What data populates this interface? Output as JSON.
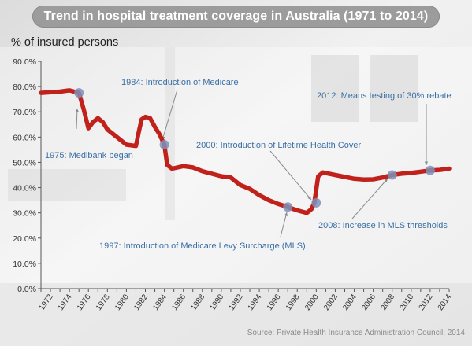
{
  "title": "Trend in hospital treatment coverage in Australia (1971 to 2014)",
  "source": "Source: Private Health Insurance Administration Council, 2014",
  "colors": {
    "line": "#c0211a",
    "marker": "#7f8fb8",
    "annotation_text": "#3a6fa5",
    "title_bg": "#9c9c9c"
  },
  "chart_data": {
    "type": "line",
    "ylabel": "% of insured persons",
    "ylim": [
      0,
      90
    ],
    "xlim": [
      1971,
      2014
    ],
    "y_ticks": [
      "0.0%",
      "10.0%",
      "20.0%",
      "30.0%",
      "40.0%",
      "50.0%",
      "60.0%",
      "70.0%",
      "80.0%",
      "90.0%"
    ],
    "y_tick_values": [
      0,
      10,
      20,
      30,
      40,
      50,
      60,
      70,
      80,
      90
    ],
    "x_ticks": [
      "1972",
      "1974",
      "1976",
      "1978",
      "1980",
      "1982",
      "1984",
      "1986",
      "1988",
      "1990",
      "1992",
      "1994",
      "1996",
      "1998",
      "2000",
      "2002",
      "2004",
      "2006",
      "2008",
      "2010",
      "2012",
      "2014"
    ],
    "grid": false,
    "series": [
      {
        "x": [
          1971,
          1973,
          1974,
          1975,
          1975.5,
          1976,
          1976.5,
          1977,
          1977.5,
          1978,
          1979,
          1980,
          1981,
          1981.3,
          1981.6,
          1982,
          1982.5,
          1983,
          1983.5,
          1984,
          1984.3,
          1984.8,
          1986,
          1987,
          1988,
          1989,
          1990,
          1991,
          1992,
          1993,
          1994,
          1995,
          1996,
          1997,
          1998,
          1998.5,
          1999,
          1999.5,
          1999.8,
          2000.2,
          2000.7,
          2002,
          2004,
          2005,
          2006,
          2007,
          2008,
          2009,
          2010,
          2011,
          2012,
          2013,
          2014
        ],
        "y": [
          77.5,
          78,
          78.5,
          77.5,
          71,
          63.5,
          66,
          67.5,
          66,
          63,
          60,
          57,
          56.5,
          62,
          67,
          68,
          67.5,
          64,
          61,
          57,
          49,
          47.5,
          48.5,
          48,
          46.5,
          45.5,
          44.5,
          44,
          41,
          39.5,
          37,
          35,
          33.5,
          32.3,
          31,
          30.5,
          30,
          31.5,
          34,
          44.5,
          46,
          45,
          43.5,
          43.2,
          43.3,
          44,
          45,
          45.5,
          45.8,
          46.3,
          46.8,
          47,
          47.5
        ]
      }
    ],
    "annotations": [
      {
        "label": "1975: Medibank began",
        "x": 1975,
        "y": 77.5
      },
      {
        "label": "1984: Introduction of Medicare",
        "x": 1984,
        "y": 57
      },
      {
        "label": "1997: Introduction of Medicare Levy Surcharge (MLS)",
        "x": 1997,
        "y": 32.3
      },
      {
        "label": "2000: Introduction of Lifetime Health Cover",
        "x": 2000,
        "y": 34
      },
      {
        "label": "2008: Increase in MLS thresholds",
        "x": 2008,
        "y": 45
      },
      {
        "label": "2012: Means testing of 30% rebate",
        "x": 2012,
        "y": 46.8
      }
    ]
  }
}
